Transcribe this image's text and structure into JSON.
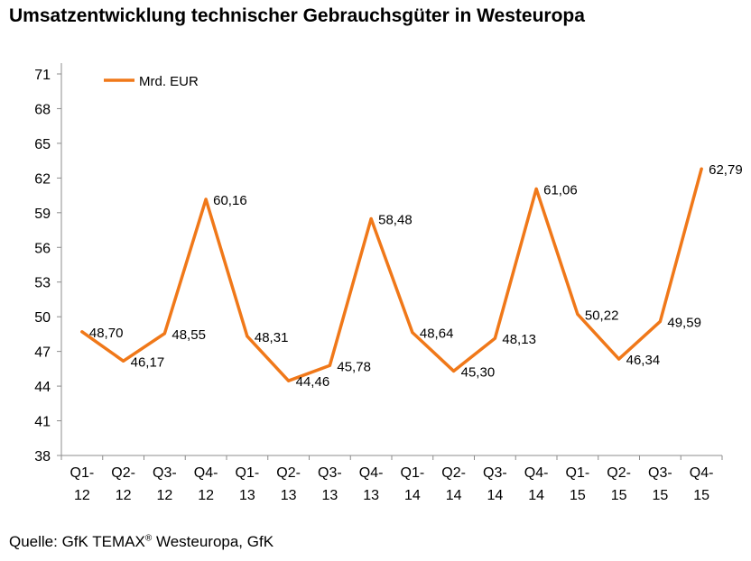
{
  "title": "Umsatzentwicklung technischer Gebrauchsgüter in Westeuropa",
  "source": {
    "prefix": "Quelle: GfK TEMAX",
    "superscript": "®",
    "suffix": " Westeuropa, GfK"
  },
  "chart_data": {
    "type": "line",
    "ylim": [
      38,
      71
    ],
    "yticks": [
      38,
      41,
      44,
      47,
      50,
      53,
      56,
      59,
      62,
      65,
      68,
      71
    ],
    "grid": false,
    "legend_position": "top-left",
    "categories": [
      [
        "Q1-",
        "12"
      ],
      [
        "Q2-",
        "12"
      ],
      [
        "Q3-",
        "12"
      ],
      [
        "Q4-",
        "12"
      ],
      [
        "Q1-",
        "13"
      ],
      [
        "Q2-",
        "13"
      ],
      [
        "Q3-",
        "13"
      ],
      [
        "Q4-",
        "13"
      ],
      [
        "Q1-",
        "14"
      ],
      [
        "Q2-",
        "14"
      ],
      [
        "Q3-",
        "14"
      ],
      [
        "Q4-",
        "14"
      ],
      [
        "Q1-",
        "15"
      ],
      [
        "Q2-",
        "15"
      ],
      [
        "Q3-",
        "15"
      ],
      [
        "Q4-",
        "15"
      ]
    ],
    "series": [
      {
        "name": "Mrd. EUR",
        "color": "#F07819",
        "values": [
          48.7,
          46.17,
          48.55,
          60.16,
          48.31,
          44.46,
          45.78,
          58.48,
          48.64,
          45.3,
          48.13,
          61.06,
          50.22,
          46.34,
          49.59,
          62.79
        ],
        "labels": [
          "48,70",
          "46,17",
          "48,55",
          "60,16",
          "48,31",
          "44,46",
          "45,78",
          "58,48",
          "48,64",
          "45,30",
          "48,13",
          "61,06",
          "50,22",
          "46,34",
          "49,59",
          "62,79"
        ]
      }
    ]
  }
}
